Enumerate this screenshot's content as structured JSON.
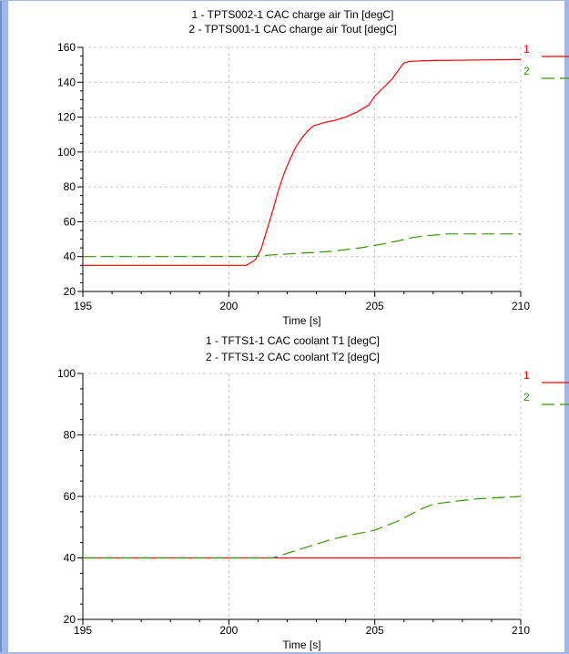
{
  "chart_data": [
    {
      "type": "line",
      "title_lines": [
        "1 - TPTS002-1 CAC charge air Tin [degC]",
        "2 - TPTS001-1 CAC charge air Tout [degC]"
      ],
      "xlabel": "Time [s]",
      "ylabel": "",
      "xlim": [
        195,
        210
      ],
      "ylim": [
        20,
        160
      ],
      "xticks": [
        195,
        200,
        205,
        210
      ],
      "yticks": [
        20,
        40,
        60,
        80,
        100,
        120,
        140,
        160
      ],
      "grid": true,
      "legend_position": "right",
      "series": [
        {
          "name": "1",
          "color": "#ff0000",
          "dash": "solid",
          "x": [
            195,
            200.6,
            200.9,
            201.1,
            201.3,
            201.5,
            201.7,
            201.9,
            202.1,
            202.3,
            202.5,
            202.7,
            202.9,
            203.1,
            203.3,
            203.6,
            204.0,
            204.4,
            204.8,
            205.0,
            205.3,
            205.6,
            205.9,
            206.0,
            206.2,
            207.0,
            210
          ],
          "y": [
            35,
            35,
            38,
            44,
            55,
            66,
            78,
            88,
            96,
            103,
            108,
            112,
            115,
            116,
            117,
            118,
            120,
            123,
            127,
            132,
            137,
            142,
            149,
            151,
            152,
            152.5,
            153
          ]
        },
        {
          "name": "2",
          "color": "#339900",
          "dash": "long-dash",
          "x": [
            195,
            200.8,
            201.5,
            202.5,
            203.5,
            204.5,
            205.2,
            205.8,
            206.3,
            206.8,
            207.5,
            210
          ],
          "y": [
            40,
            40,
            41,
            42,
            43,
            45,
            47,
            49,
            51,
            52,
            53,
            53
          ]
        }
      ]
    },
    {
      "type": "line",
      "title_lines": [
        "1 - TFTS1-1 CAC coolant T1 [degC]",
        "2 - TFTS1-2 CAC coolant T2 [degC]"
      ],
      "xlabel": "Time [s]",
      "ylabel": "",
      "xlim": [
        195,
        210
      ],
      "ylim": [
        20,
        100
      ],
      "xticks": [
        195,
        200,
        205,
        210
      ],
      "yticks": [
        20,
        40,
        60,
        80,
        100
      ],
      "grid": true,
      "legend_position": "right",
      "series": [
        {
          "name": "1",
          "color": "#ff0000",
          "dash": "solid",
          "x": [
            195,
            210
          ],
          "y": [
            40,
            40
          ]
        },
        {
          "name": "2",
          "color": "#339900",
          "dash": "long-dash",
          "x": [
            195,
            201.5,
            202.5,
            203.5,
            204.2,
            205.0,
            205.8,
            206.5,
            207.0,
            207.8,
            208.5,
            210
          ],
          "y": [
            40,
            40,
            43,
            46,
            47.5,
            49,
            52,
            55.5,
            57.5,
            58.5,
            59.2,
            60
          ]
        }
      ]
    }
  ]
}
